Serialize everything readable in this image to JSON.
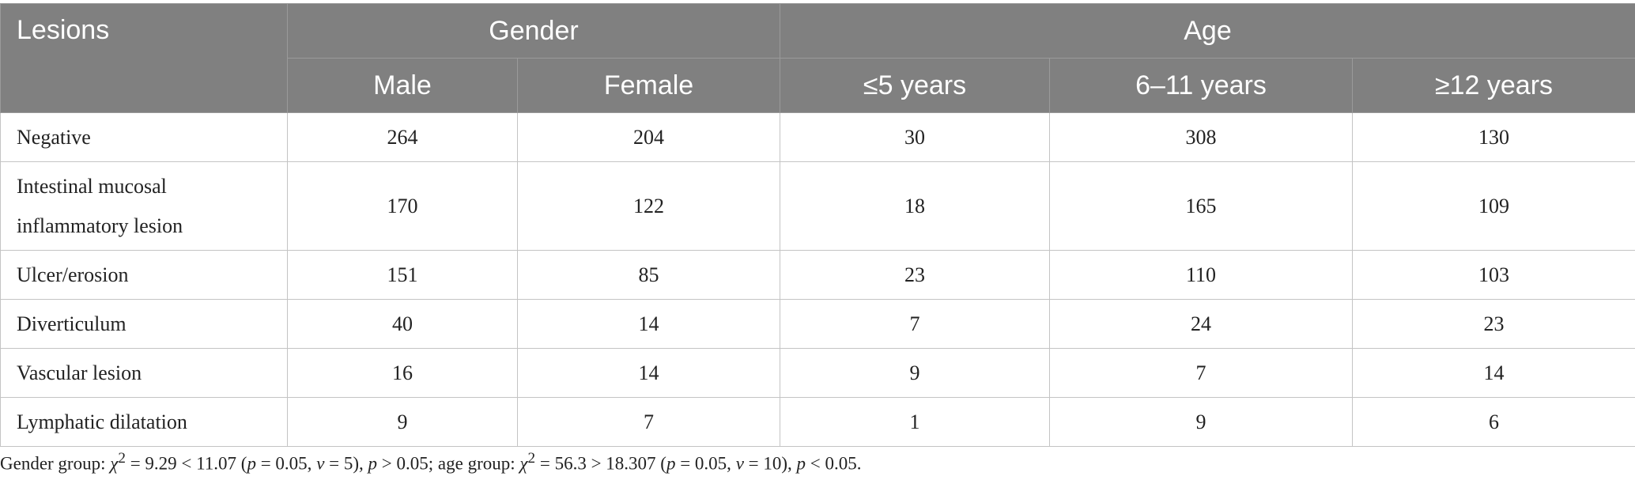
{
  "table": {
    "header": {
      "lesions": "Lesions",
      "gender": "Gender",
      "age": "Age",
      "sub": [
        "Male",
        "Female",
        "≤5 years",
        "6–11 years",
        "≥12 years"
      ]
    },
    "rows": [
      {
        "label": "Negative",
        "values": [
          "264",
          "204",
          "30",
          "308",
          "130"
        ]
      },
      {
        "label": "Intestinal mucosal inflammatory lesion",
        "values": [
          "170",
          "122",
          "18",
          "165",
          "109"
        ]
      },
      {
        "label": "Ulcer/erosion",
        "values": [
          "151",
          "85",
          "23",
          "110",
          "103"
        ]
      },
      {
        "label": "Diverticulum",
        "values": [
          "40",
          "14",
          "7",
          "24",
          "23"
        ]
      },
      {
        "label": "Vascular lesion",
        "values": [
          "16",
          "14",
          "9",
          "7",
          "14"
        ]
      },
      {
        "label": "Lymphatic dilatation",
        "values": [
          "9",
          "7",
          "1",
          "9",
          "6"
        ]
      }
    ]
  },
  "footnote": {
    "gender_prefix": "Gender group: ",
    "gender_chi": "χ",
    "gender_expr": " = 9.29 < 11.07 (",
    "gender_p1": "p",
    "gender_mid": " = 0.05, ",
    "gender_nu": "ν",
    "gender_df": " = 5), ",
    "gender_p2": "p",
    "gender_result": " > 0.05; ",
    "age_prefix": "age group: ",
    "age_chi": "χ",
    "age_expr": " = 56.3 > 18.307 (",
    "age_p1": "p",
    "age_mid": " = 0.05, ",
    "age_nu": "ν",
    "age_df": " = 10), ",
    "age_p2": "p",
    "age_result": " < 0.05.",
    "sup": "2"
  }
}
